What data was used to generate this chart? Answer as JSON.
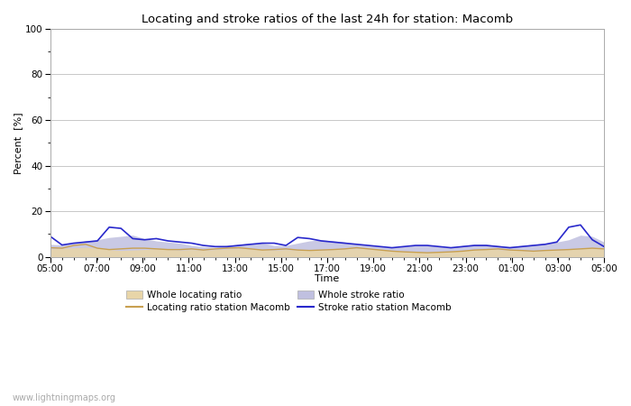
{
  "title": "Locating and stroke ratios of the last 24h for station: Macomb",
  "xlabel": "Time",
  "ylabel": "Percent  [%]",
  "ylim": [
    0,
    100
  ],
  "yticks": [
    0,
    20,
    40,
    60,
    80,
    100
  ],
  "x_tick_labels": [
    "05:00",
    "07:00",
    "09:00",
    "11:00",
    "13:00",
    "15:00",
    "17:00",
    "19:00",
    "21:00",
    "23:00",
    "01:00",
    "03:00",
    "05:00"
  ],
  "watermark": "www.lightningmaps.org",
  "bg_color": "#ffffff",
  "plot_bg_color": "#ffffff",
  "grid_color": "#c8c8c8",
  "whole_locating_fill_color": "#e8d5a8",
  "whole_stroke_fill_color": "#c0c0e0",
  "locating_line_color": "#c8a050",
  "stroke_line_color": "#2828cc",
  "whole_locating_ratio": [
    3.5,
    3.8,
    4.0,
    4.2,
    3.8,
    3.2,
    2.8,
    3.0,
    3.2,
    3.5,
    3.2,
    3.0,
    3.2,
    3.0,
    3.2,
    3.5,
    3.8,
    3.5,
    3.2,
    3.0,
    3.2,
    3.0,
    2.8,
    3.0,
    3.2,
    3.5,
    3.8,
    3.5,
    3.2,
    2.8,
    2.5,
    2.2,
    2.0,
    2.2,
    2.5,
    2.8,
    3.2,
    3.5,
    3.2,
    3.0,
    2.8,
    2.5,
    2.8,
    3.0,
    3.2,
    3.5,
    3.8,
    3.5
  ],
  "whole_stroke_ratio": [
    5.5,
    5.2,
    6.0,
    7.0,
    7.5,
    8.5,
    9.0,
    9.5,
    8.0,
    7.0,
    6.5,
    6.0,
    5.0,
    4.5,
    4.2,
    5.0,
    5.5,
    6.0,
    6.0,
    5.0,
    5.0,
    6.0,
    7.0,
    7.5,
    7.0,
    6.5,
    5.5,
    5.0,
    4.5,
    4.0,
    4.5,
    5.0,
    5.0,
    4.5,
    4.0,
    5.0,
    5.5,
    5.5,
    5.0,
    4.5,
    5.0,
    5.5,
    6.0,
    6.5,
    7.5,
    9.5,
    9.0,
    6.5
  ],
  "locating_ratio_station": [
    4.0,
    3.8,
    5.0,
    5.5,
    3.8,
    3.2,
    3.5,
    3.8,
    3.8,
    3.5,
    3.2,
    3.2,
    3.5,
    3.0,
    3.5,
    3.8,
    4.0,
    3.5,
    3.0,
    3.2,
    3.5,
    3.0,
    2.8,
    3.0,
    3.2,
    3.5,
    4.0,
    3.5,
    3.0,
    2.5,
    2.2,
    2.0,
    1.8,
    2.0,
    2.2,
    2.5,
    3.0,
    3.2,
    3.5,
    3.0,
    2.8,
    2.5,
    2.8,
    3.0,
    3.2,
    3.5,
    3.8,
    3.5
  ],
  "stroke_ratio_station": [
    9.0,
    5.2,
    6.0,
    6.5,
    7.0,
    13.0,
    12.5,
    8.0,
    7.5,
    8.0,
    7.0,
    6.5,
    6.0,
    5.0,
    4.5,
    4.5,
    5.0,
    5.5,
    6.0,
    6.0,
    5.0,
    8.5,
    8.0,
    7.0,
    6.5,
    6.0,
    5.5,
    5.0,
    4.5,
    4.0,
    4.5,
    5.0,
    5.0,
    4.5,
    4.0,
    4.5,
    5.0,
    5.0,
    4.5,
    4.0,
    4.5,
    5.0,
    5.5,
    6.5,
    13.0,
    14.0,
    7.5,
    4.5
  ]
}
